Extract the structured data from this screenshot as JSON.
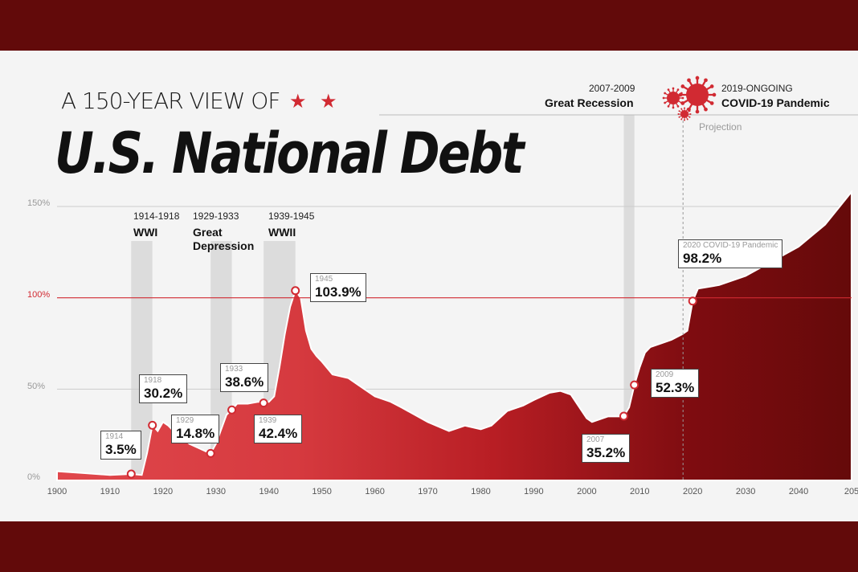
{
  "header": {
    "title_top": "A 150-YEAR VIEW OF",
    "title_main": "U.S. National Debt"
  },
  "colors": {
    "frame": "#620a0a",
    "background": "#f4f4f4",
    "area_light": "#dd3a3f",
    "area_dark": "#6a0a0a",
    "accent_line": "#d12a32",
    "shading": "#dcdcdc"
  },
  "icons": [
    "star-icon",
    "virus-icon"
  ],
  "events": [
    {
      "years": "1914-1918",
      "name": "WWI"
    },
    {
      "years": "1929-1933",
      "name": "Great Depression"
    },
    {
      "years": "1939-1945",
      "name": "WWII"
    },
    {
      "years": "2007-2009",
      "name": "Great Recession"
    },
    {
      "years": "2019-ONGOING",
      "name": "COVID-19 Pandemic"
    }
  ],
  "projection_label": "Projection",
  "callouts": [
    {
      "year": "1914",
      "value": "3.5%"
    },
    {
      "year": "1918",
      "value": "30.2%"
    },
    {
      "year": "1929",
      "value": "14.8%"
    },
    {
      "year": "1933",
      "value": "38.6%"
    },
    {
      "year": "1939",
      "value": "42.4%"
    },
    {
      "year": "1945",
      "value": "103.9%"
    },
    {
      "year": "2007",
      "value": "35.2%"
    },
    {
      "year": "2009",
      "value": "52.3%"
    },
    {
      "year": "2020 COVID-19 Pandemic",
      "value": "98.2%"
    }
  ],
  "chart_data": {
    "type": "area",
    "title": "U.S. National Debt",
    "xlabel": "",
    "ylabel": "",
    "xlim": [
      1900,
      2050
    ],
    "ylim": [
      0,
      150
    ],
    "yticks": [
      "0%",
      "50%",
      "100%",
      "150%"
    ],
    "xticks": [
      "1900",
      "1910",
      "1920",
      "1930",
      "1940",
      "1950",
      "1960",
      "1970",
      "1980",
      "1990",
      "2000",
      "2010",
      "2020",
      "2030",
      "2040",
      "205"
    ],
    "reference_line": 100,
    "projection_start": 2020,
    "shaded_periods": [
      [
        1914,
        1918
      ],
      [
        1929,
        1933
      ],
      [
        1939,
        1945
      ],
      [
        2007,
        2009
      ]
    ],
    "series": [
      {
        "x": [
          1900,
          1905,
          1910,
          1914,
          1916,
          1917,
          1918,
          1919,
          1920,
          1921,
          1922,
          1925,
          1928,
          1929,
          1930,
          1931,
          1932,
          1933,
          1934,
          1936,
          1938,
          1939,
          1940,
          1941,
          1942,
          1943,
          1944,
          1945,
          1946,
          1947,
          1948,
          1949,
          1950,
          1952,
          1955,
          1957,
          1960,
          1963,
          1965,
          1970,
          1974,
          1977,
          1980,
          1982,
          1985,
          1988,
          1990,
          1993,
          1995,
          1997,
          2000,
          2001,
          2004,
          2006,
          2007,
          2008,
          2009,
          2010,
          2011,
          2012,
          2014,
          2016,
          2018,
          2019,
          2020,
          2021,
          2025,
          2030,
          2035,
          2040,
          2045,
          2050
        ],
        "y": [
          5,
          4,
          3,
          3.5,
          3,
          15,
          30.2,
          27,
          32,
          30,
          27,
          20,
          16,
          14.8,
          20,
          28,
          36,
          38.6,
          42,
          42,
          43,
          42.4,
          43,
          46,
          62,
          80,
          95,
          103.9,
          100,
          82,
          72,
          68,
          65,
          58,
          56,
          52,
          46,
          43,
          40,
          32,
          27,
          30,
          28,
          30,
          38,
          41,
          44,
          48,
          49,
          47,
          34,
          32,
          35,
          35,
          35.2,
          40,
          52.3,
          62,
          70,
          73,
          75,
          77,
          80,
          82,
          98.2,
          105,
          107,
          112,
          120,
          128,
          140,
          158
        ]
      }
    ]
  }
}
